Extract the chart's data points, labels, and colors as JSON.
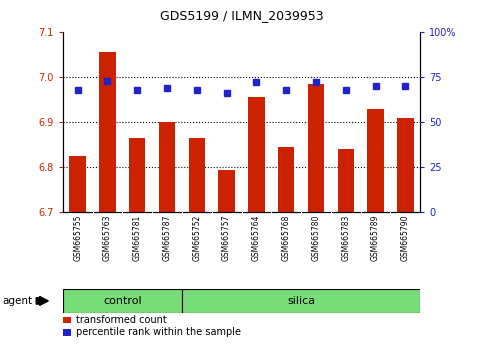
{
  "title": "GDS5199 / ILMN_2039953",
  "samples": [
    "GSM665755",
    "GSM665763",
    "GSM665781",
    "GSM665787",
    "GSM665752",
    "GSM665757",
    "GSM665764",
    "GSM665768",
    "GSM665780",
    "GSM665783",
    "GSM665789",
    "GSM665790"
  ],
  "bar_values": [
    6.825,
    7.055,
    6.865,
    6.9,
    6.865,
    6.795,
    6.955,
    6.845,
    6.985,
    6.84,
    6.93,
    6.91
  ],
  "percentile_values": [
    68,
    73,
    68,
    69,
    68,
    66,
    72,
    68,
    72,
    68,
    70,
    70
  ],
  "bar_color": "#cc2200",
  "dot_color": "#2222cc",
  "ylim_left": [
    6.7,
    7.1
  ],
  "ylim_right": [
    0,
    100
  ],
  "yticks_left": [
    6.7,
    6.8,
    6.9,
    7.0,
    7.1
  ],
  "yticks_right": [
    0,
    25,
    50,
    75,
    100
  ],
  "ytick_labels_right": [
    "0",
    "25",
    "50",
    "75",
    "100%"
  ],
  "groups": [
    {
      "label": "control",
      "start": 0,
      "end": 4,
      "color": "#77dd77"
    },
    {
      "label": "silica",
      "start": 4,
      "end": 12,
      "color": "#77dd77"
    }
  ],
  "group_row_label": "agent",
  "legend_bar_label": "transformed count",
  "legend_dot_label": "percentile rank within the sample",
  "bar_width": 0.55,
  "background_color": "#ffffff",
  "plot_bg_color": "#ffffff",
  "tick_label_color_left": "#cc2200",
  "tick_label_color_right": "#2222cc",
  "grid_color": "#000000",
  "xlabel_area_bg": "#cccccc",
  "n_samples": 12,
  "n_control": 4
}
